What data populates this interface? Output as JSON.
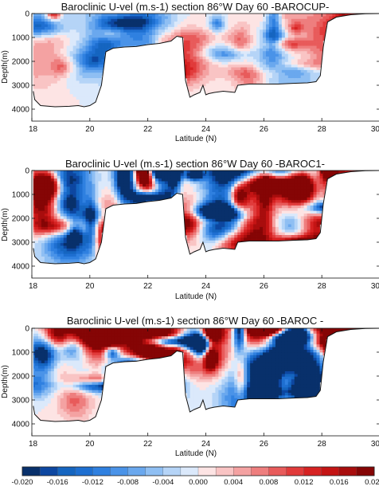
{
  "chart_data": [
    {
      "type": "heatmap",
      "title": "Baroclinic U-vel (m.s-1) section 86°W Day 60 -BAROCUP-",
      "xlabel": "Latitude (N)",
      "ylabel": "Depth(m)",
      "xlim": [
        18,
        30
      ],
      "ylim": [
        4500,
        0
      ],
      "xticks": [
        "18",
        "20",
        "22",
        "24",
        "26",
        "28",
        "30"
      ],
      "yticks": [
        "0",
        "1000",
        "2000",
        "3000",
        "4000"
      ],
      "amplitude": 0.35
    },
    {
      "type": "heatmap",
      "title": "Baroclinic U-vel (m.s-1) section 86°W  Day 60 -BAROC1-",
      "xlabel": "Latitude (N)",
      "ylabel": "Depth(m)",
      "xlim": [
        18,
        30
      ],
      "ylim": [
        4500,
        0
      ],
      "xticks": [
        "18",
        "20",
        "22",
        "24",
        "26",
        "28",
        "30"
      ],
      "yticks": [
        "0",
        "1000",
        "2000",
        "3000",
        "4000"
      ],
      "amplitude": 1.0
    },
    {
      "type": "heatmap",
      "title": "Baroclinic U-vel (m.s-1) section 86°W  Day 60 -BAROC  -",
      "xlabel": "Latitude (N)",
      "ylabel": "Depth(m)",
      "xlim": [
        18,
        30
      ],
      "ylim": [
        4500,
        0
      ],
      "xticks": [
        "18",
        "20",
        "22",
        "24",
        "26",
        "28",
        "30"
      ],
      "yticks": [
        "0",
        "1000",
        "2000",
        "3000",
        "4000"
      ],
      "amplitude": 1.1
    }
  ],
  "bathymetry": {
    "lat": [
      18.05,
      18.1,
      18.3,
      18.8,
      19.3,
      19.6,
      19.8,
      20.0,
      20.2,
      20.4,
      20.55,
      20.8,
      21.2,
      21.6,
      22.0,
      22.4,
      22.8,
      23.0,
      23.2,
      23.3,
      23.45,
      23.6,
      23.8,
      23.9,
      24.0,
      24.1,
      24.3,
      24.6,
      25.0,
      25.1,
      25.5,
      26.0,
      26.5,
      27.0,
      27.5,
      27.8,
      27.95,
      28.05,
      28.2,
      28.5,
      29.0,
      29.5,
      30.0
    ],
    "depth": [
      3250,
      3600,
      3850,
      3900,
      3880,
      3850,
      3900,
      3850,
      3700,
      3000,
      1600,
      1450,
      1400,
      1380,
      1300,
      1250,
      1150,
      950,
      1000,
      2800,
      3500,
      3400,
      3300,
      3000,
      3400,
      3350,
      3300,
      3250,
      3300,
      3000,
      2950,
      2950,
      2950,
      2920,
      2900,
      2850,
      2600,
      1400,
      350,
      150,
      50,
      10,
      0
    ]
  },
  "colorbar": {
    "min": -0.02,
    "max": 0.02,
    "levels": 20,
    "ticks": [
      "-0.020",
      "-0.016",
      "-0.012",
      "-0.008",
      "-0.004",
      "0.000",
      "0.004",
      "0.008",
      "0.012",
      "0.016",
      "0.020"
    ],
    "colors": [
      "#08306b",
      "#0d47a1",
      "#1565c0",
      "#1e6fd1",
      "#2f80e0",
      "#4a93e8",
      "#6aa8ee",
      "#8fbff3",
      "#b5d4f7",
      "#dbe9fb",
      "#fde4e4",
      "#f9c4c4",
      "#f4a2a2",
      "#ee7e7e",
      "#e85b5b",
      "#e13b3b",
      "#d62222",
      "#c41414",
      "#a80d0d",
      "#850505"
    ]
  }
}
